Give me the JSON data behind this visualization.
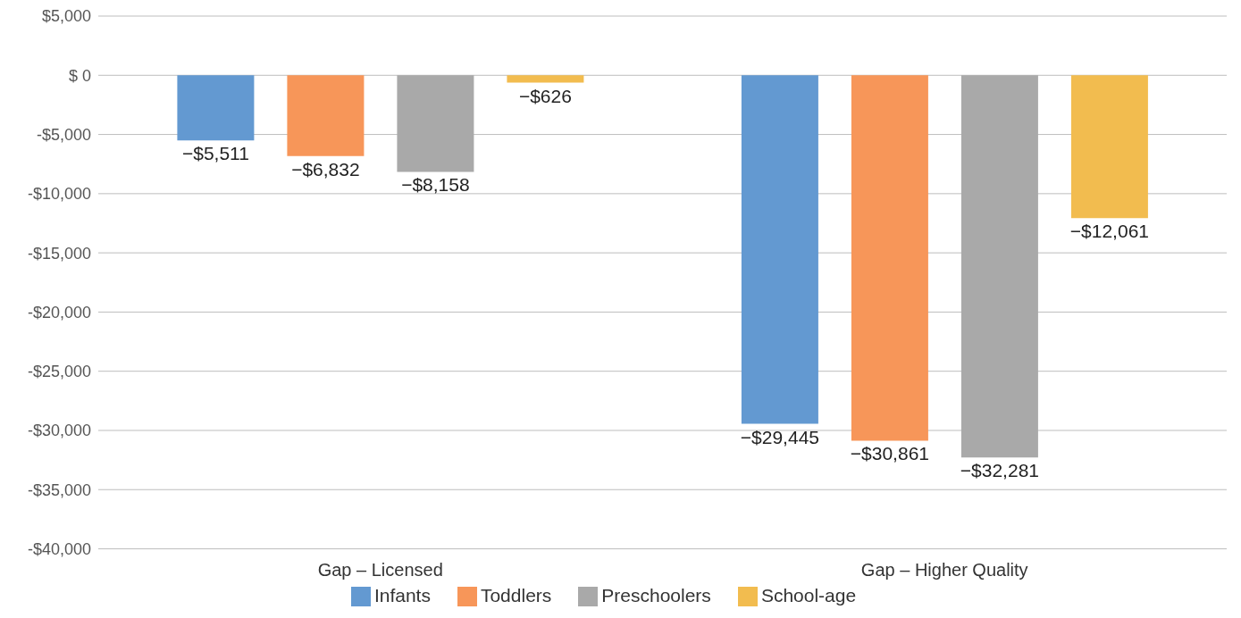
{
  "chart_data": {
    "type": "bar",
    "categories": [
      "Gap – Licensed",
      "Gap – Higher Quality"
    ],
    "series": [
      {
        "name": "Infants",
        "color": "#6399d1",
        "values": [
          -5511,
          -29445
        ],
        "value_labels": [
          "−$5,511",
          "−$29,445"
        ]
      },
      {
        "name": "Toddlers",
        "color": "#f79659",
        "values": [
          -6832,
          -30861
        ],
        "value_labels": [
          "−$6,832",
          "−$30,861"
        ]
      },
      {
        "name": "Preschoolers",
        "color": "#a9a9a9",
        "values": [
          -8158,
          -32281
        ],
        "value_labels": [
          "−$8,158",
          "−$32,281"
        ]
      },
      {
        "name": "School-age",
        "color": "#f2bc4f",
        "values": [
          -626,
          -12061
        ],
        "value_labels": [
          "−$626",
          "−$12,061"
        ]
      }
    ],
    "ylim": [
      -40000,
      5000
    ],
    "yticks": [
      {
        "value": 5000,
        "label": "$5,000"
      },
      {
        "value": 0,
        "label": "$ 0"
      },
      {
        "value": -5000,
        "label": "-$5,000"
      },
      {
        "value": -10000,
        "label": "-$10,000"
      },
      {
        "value": -15000,
        "label": "-$15,000"
      },
      {
        "value": -20000,
        "label": "-$20,000"
      },
      {
        "value": -25000,
        "label": "-$25,000"
      },
      {
        "value": -30000,
        "label": "-$30,000"
      },
      {
        "value": -35000,
        "label": "-$35,000"
      },
      {
        "value": -40000,
        "label": "-$40,000"
      }
    ],
    "grid": "y",
    "legend": "bottom"
  }
}
